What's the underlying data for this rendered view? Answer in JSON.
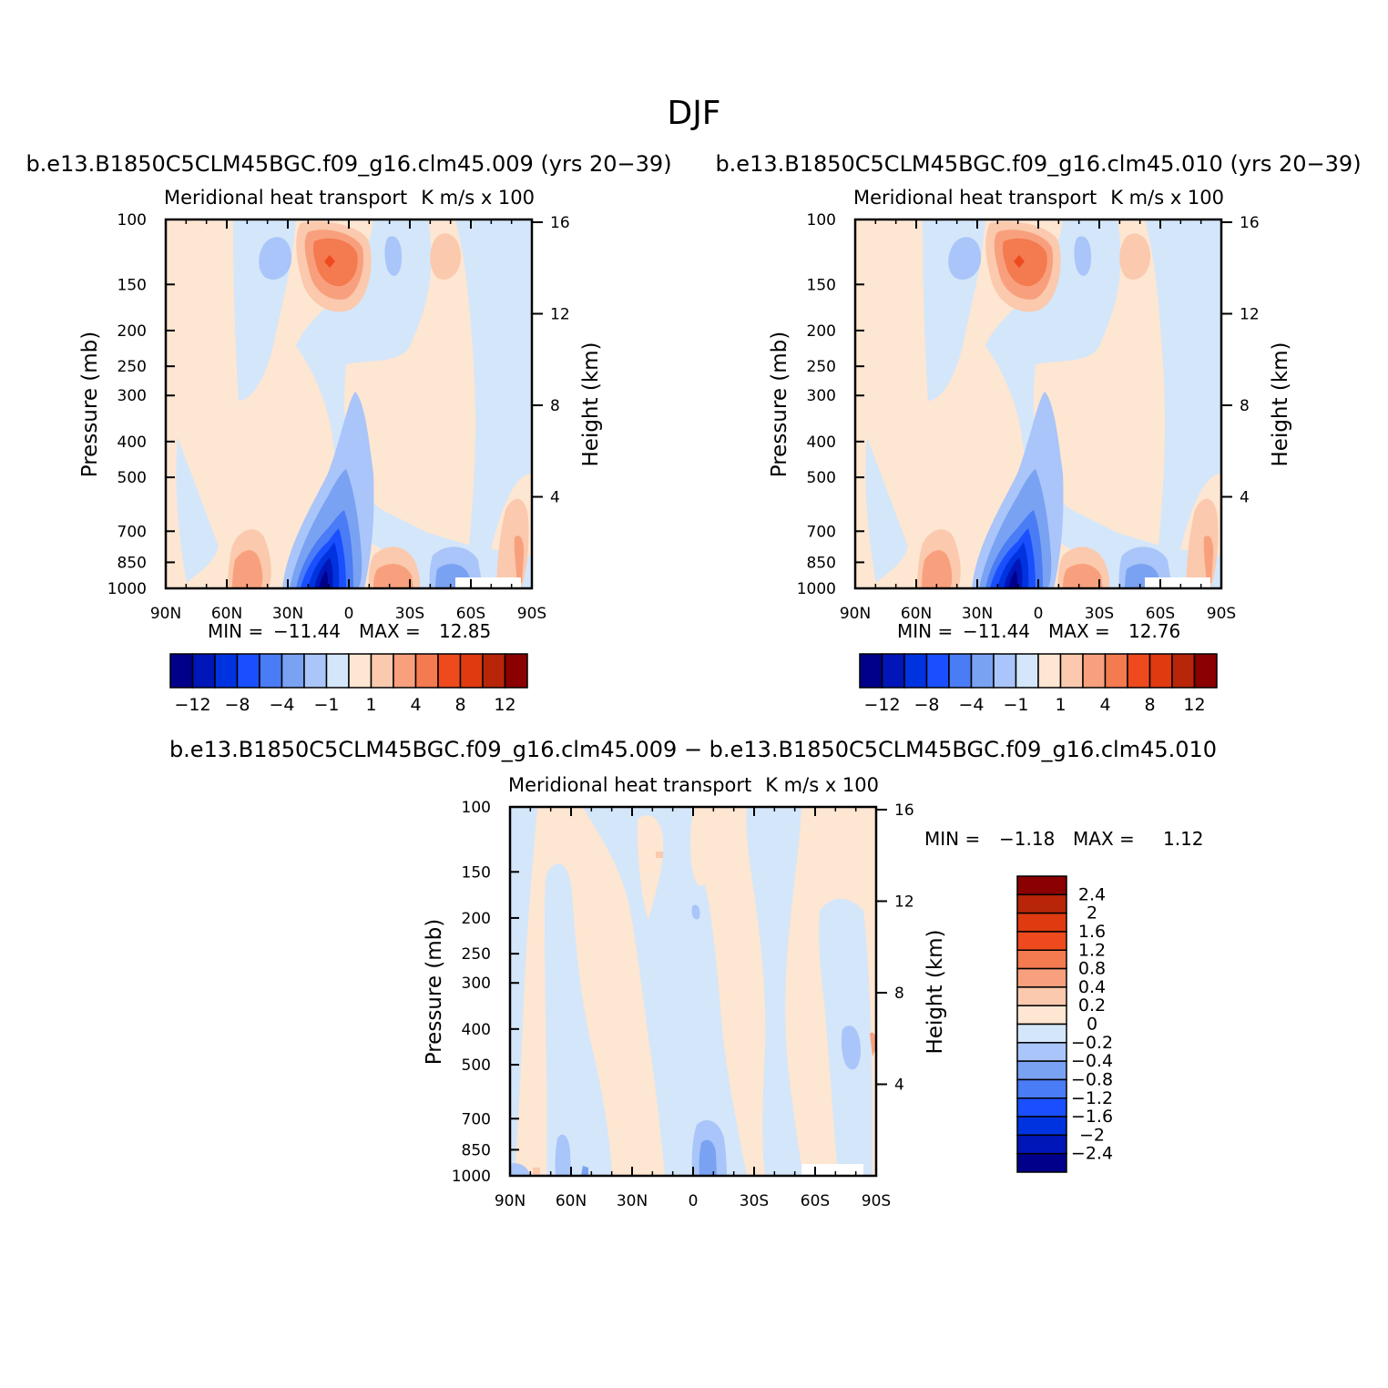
{
  "figure": {
    "season_title": "DJF",
    "panels": [
      {
        "case_title": "b.e13.B1850C5CLM45BGC.f09_g16.clm45.009 (yrs 20-39)",
        "left_title": "Meridional heat transport",
        "right_title": "K m/s x 100",
        "ylabel": "Pressure (mb)",
        "ylabel_right": "Height (km)",
        "min_label": "MIN =",
        "min_value": "-11.44",
        "max_label": "MAX =",
        "max_value": "12.85"
      },
      {
        "case_title": "b.e13.B1850C5CLM45BGC.f09_g16.clm45.010 (yrs 20-39)",
        "left_title": "Meridional heat transport",
        "right_title": "K m/s x 100",
        "ylabel": "Pressure (mb)",
        "ylabel_right": "Height (km)",
        "min_label": "MIN =",
        "min_value": "-11.44",
        "max_label": "MAX =",
        "max_value": "12.76"
      },
      {
        "case_title": "b.e13.B1850C5CLM45BGC.f09_g16.clm45.009 - b.e13.B1850C5CLM45BGC.f09_g16.clm45.010",
        "left_title": "Meridional heat transport",
        "right_title": "K m/s x 100",
        "ylabel": "Pressure (mb)",
        "ylabel_right": "Height (km)",
        "min_label": "MIN =",
        "min_value": "-1.18",
        "max_label": "MAX =",
        "max_value": "1.12"
      }
    ]
  },
  "chart_data": [
    {
      "type": "heatmap",
      "x_ticks": [
        "90N",
        "60N",
        "30N",
        "0",
        "30S",
        "60S",
        "90S"
      ],
      "y_ticks": [
        "100",
        "150",
        "200",
        "250",
        "300",
        "400",
        "500",
        "700",
        "850",
        "1000"
      ],
      "y_ticks_right": [
        "16",
        "12",
        "8",
        "4"
      ],
      "y_scale": "log",
      "ylim": [
        1000,
        100
      ],
      "colorbar": {
        "orientation": "horizontal",
        "levels": [
          -12,
          -10,
          -8,
          -6,
          -4,
          -2,
          -1,
          0,
          1,
          2,
          4,
          6,
          8,
          10,
          12
        ],
        "tick_labels": [
          "-12",
          "-8",
          "-4",
          "-1",
          "1",
          "4",
          "8",
          "12"
        ],
        "colors": [
          "#00008b",
          "#0016b8",
          "#0033e0",
          "#1a4fff",
          "#4a7cf5",
          "#7aa2f2",
          "#a9c5f9",
          "#d4e6fa",
          "#fde6d2",
          "#fbc9ad",
          "#f8a07d",
          "#f47a50",
          "#ee4a1e",
          "#e03a10",
          "#b82508",
          "#8b0000"
        ]
      }
    },
    {
      "type": "heatmap",
      "x_ticks": [
        "90N",
        "60N",
        "30N",
        "0",
        "30S",
        "60S",
        "90S"
      ],
      "y_ticks": [
        "100",
        "150",
        "200",
        "250",
        "300",
        "400",
        "500",
        "700",
        "850",
        "1000"
      ],
      "y_ticks_right": [
        "16",
        "12",
        "8",
        "4"
      ],
      "y_scale": "log",
      "ylim": [
        1000,
        100
      ],
      "colorbar": {
        "orientation": "horizontal",
        "levels": [
          -12,
          -10,
          -8,
          -6,
          -4,
          -2,
          -1,
          0,
          1,
          2,
          4,
          6,
          8,
          10,
          12
        ],
        "tick_labels": [
          "-12",
          "-8",
          "-4",
          "-1",
          "1",
          "4",
          "8",
          "12"
        ],
        "colors": [
          "#00008b",
          "#0016b8",
          "#0033e0",
          "#1a4fff",
          "#4a7cf5",
          "#7aa2f2",
          "#a9c5f9",
          "#d4e6fa",
          "#fde6d2",
          "#fbc9ad",
          "#f8a07d",
          "#f47a50",
          "#ee4a1e",
          "#e03a10",
          "#b82508",
          "#8b0000"
        ]
      }
    },
    {
      "type": "heatmap",
      "x_ticks": [
        "90N",
        "60N",
        "30N",
        "0",
        "30S",
        "60S",
        "90S"
      ],
      "y_ticks": [
        "100",
        "150",
        "200",
        "250",
        "300",
        "400",
        "500",
        "700",
        "850",
        "1000"
      ],
      "y_ticks_right": [
        "16",
        "12",
        "8",
        "4"
      ],
      "y_scale": "log",
      "ylim": [
        1000,
        100
      ],
      "colorbar": {
        "orientation": "vertical",
        "tick_labels": [
          "2.4",
          "2",
          "1.6",
          "1.2",
          "0.8",
          "0.4",
          "0.2",
          "0",
          "-0.2",
          "-0.4",
          "-0.8",
          "-1.2",
          "-1.6",
          "-2",
          "-2.4"
        ],
        "colors": [
          "#8b0000",
          "#b82508",
          "#e03a10",
          "#ee4a1e",
          "#f47a50",
          "#f8a07d",
          "#fbc9ad",
          "#fde6d2",
          "#d4e6fa",
          "#a9c5f9",
          "#7aa2f2",
          "#4a7cf5",
          "#1a4fff",
          "#0033e0",
          "#0016b8",
          "#00008b"
        ]
      }
    }
  ]
}
